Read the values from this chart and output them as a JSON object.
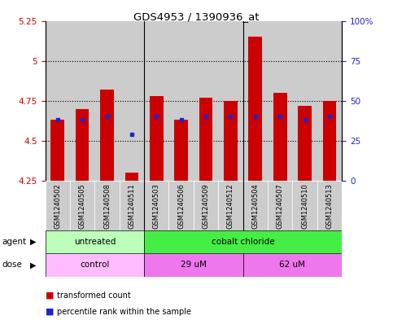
{
  "title": "GDS4953 / 1390936_at",
  "samples": [
    "GSM1240502",
    "GSM1240505",
    "GSM1240508",
    "GSM1240511",
    "GSM1240503",
    "GSM1240506",
    "GSM1240509",
    "GSM1240512",
    "GSM1240504",
    "GSM1240507",
    "GSM1240510",
    "GSM1240513"
  ],
  "red_values": [
    4.63,
    4.7,
    4.82,
    4.3,
    4.78,
    4.63,
    4.77,
    4.75,
    5.15,
    4.8,
    4.72,
    4.75
  ],
  "blue_values": [
    4.63,
    4.63,
    4.65,
    4.54,
    4.65,
    4.63,
    4.65,
    4.65,
    4.65,
    4.65,
    4.63,
    4.65
  ],
  "ymin": 4.25,
  "ymax": 5.25,
  "yticks": [
    4.25,
    4.5,
    4.75,
    5.0,
    5.25
  ],
  "ytick_labels": [
    "4.25",
    "4.5",
    "4.75",
    "5",
    "5.25"
  ],
  "right_yticks": [
    0,
    25,
    50,
    75,
    100
  ],
  "right_ytick_labels": [
    "0",
    "25",
    "50",
    "75",
    "100%"
  ],
  "bar_width": 0.55,
  "bar_color": "#cc0000",
  "blue_color": "#2222cc",
  "baseline": 4.25,
  "col_bg_color": "#cccccc",
  "agent_untreated_color": "#bbffbb",
  "agent_cobalt_color": "#44ee44",
  "dose_control_color": "#ffbbff",
  "dose_um_color": "#ee77ee",
  "legend_red": "transformed count",
  "legend_blue": "percentile rank within the sample",
  "bg_color": "#ffffff",
  "tick_label_color_left": "#cc0000",
  "tick_label_color_right": "#2222cc",
  "group_sep_cols": [
    3.5,
    7.5
  ],
  "agent_group_seps": [
    3.5
  ],
  "dose_group_seps": [
    3.5,
    7.5
  ]
}
